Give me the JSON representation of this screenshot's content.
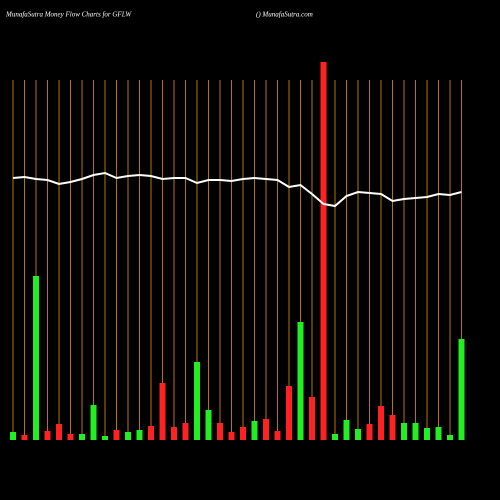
{
  "chart_data": {
    "type": "bar",
    "title": "MunafaSutra  Money Flow  Charts for GFLW",
    "subtitle": "() MunafaSutra.com",
    "categories": [
      null,
      null,
      null,
      null,
      null,
      null,
      null,
      null,
      null,
      null,
      null,
      null,
      null,
      null,
      null,
      null,
      null,
      null,
      null,
      null,
      null,
      null,
      null,
      null,
      null,
      null,
      null,
      null,
      null,
      null,
      null,
      null,
      null,
      null,
      null,
      null,
      null,
      null,
      null,
      null
    ],
    "series": [
      {
        "type": "bar",
        "values": [
          8,
          5,
          164,
          9,
          16,
          6,
          6,
          35,
          4,
          10,
          8,
          10,
          14,
          57,
          13,
          17,
          78,
          30,
          17,
          8,
          13,
          19,
          21,
          9,
          54,
          118,
          43,
          378,
          6,
          20,
          11,
          16,
          34,
          25,
          17,
          17,
          12,
          13,
          5,
          101
        ],
        "colors": [
          "#22ee22",
          "#ff2222",
          "#22ee22",
          "#ff2222",
          "#ff2222",
          "#ff2222",
          "#22ee22",
          "#22ee22",
          "#22ee22",
          "#ff2222",
          "#22ee22",
          "#22ee22",
          "#ff2222",
          "#ff2222",
          "#ff2222",
          "#ff2222",
          "#22ee22",
          "#22ee22",
          "#ff2222",
          "#ff2222",
          "#ff2222",
          "#22ee22",
          "#ff2222",
          "#ff2222",
          "#ff2222",
          "#22ee22",
          "#ff2222",
          "#ff2222",
          "#22ee22",
          "#22ee22",
          "#22ee22",
          "#ff2222",
          "#ff2222",
          "#ff2222",
          "#22ee22",
          "#22ee22",
          "#22ee22",
          "#22ee22",
          "#22ee22",
          "#22ee22"
        ]
      },
      {
        "type": "line",
        "color": "#ffffff",
        "values": [
          262,
          263,
          261,
          260,
          256,
          258,
          261,
          265,
          267,
          262,
          264,
          265,
          264,
          261,
          262,
          262,
          257,
          260,
          260,
          259,
          261,
          262,
          261,
          260,
          253,
          255,
          246,
          236,
          234,
          244,
          248,
          247,
          246,
          239,
          241,
          242,
          243,
          246,
          245,
          248
        ]
      }
    ],
    "ylim": [
      0,
      380
    ],
    "grid": true,
    "grid_color": "#b8730b"
  }
}
